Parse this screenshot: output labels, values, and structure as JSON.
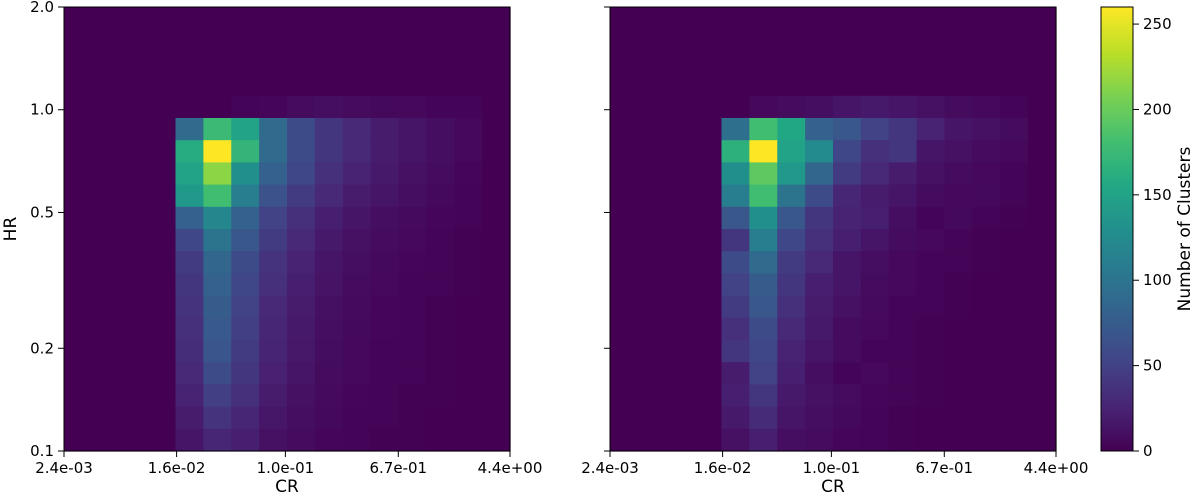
{
  "chart_data": [
    {
      "type": "heatmap",
      "panel": "left",
      "xlabel": "CR",
      "ylabel": "HR",
      "x_scale": "log",
      "y_scale": "log",
      "xlim": [
        0.0024,
        4.4
      ],
      "ylim": [
        0.1,
        2.0
      ],
      "xticks": [
        0.0024,
        0.016,
        0.1,
        0.67,
        4.4
      ],
      "xtick_labels": [
        "2.4e-03",
        "1.6e-02",
        "1.0e-01",
        "6.7e-01",
        "4.4e+00"
      ],
      "yticks": [
        0.1,
        0.2,
        0.5,
        1.0,
        2.0
      ],
      "ytick_labels": [
        "0.1",
        "0.2",
        "0.5",
        "1.0",
        "2.0"
      ],
      "grid": false,
      "bins_x": 16,
      "bins_y": 20,
      "row_order": "top-to-bottom (HR 2.0 at top, HR 0.1 at bottom)",
      "values": [
        [
          0,
          0,
          0,
          0,
          0,
          0,
          0,
          0,
          0,
          0,
          0,
          0,
          0,
          0,
          0,
          0
        ],
        [
          0,
          0,
          0,
          0,
          0,
          0,
          0,
          0,
          0,
          0,
          0,
          0,
          0,
          0,
          0,
          0
        ],
        [
          0,
          0,
          0,
          0,
          0,
          0,
          0,
          0,
          0,
          0,
          0,
          0,
          0,
          0,
          0,
          0
        ],
        [
          0,
          0,
          0,
          0,
          0,
          0,
          0,
          0,
          0,
          0,
          0,
          0,
          0,
          0,
          0,
          0
        ],
        [
          0,
          0,
          0,
          0,
          0,
          0,
          2,
          4,
          8,
          10,
          8,
          6,
          5,
          3,
          2,
          0
        ],
        [
          0,
          0,
          0,
          0,
          90,
          175,
          150,
          90,
          60,
          40,
          30,
          20,
          15,
          10,
          5,
          0
        ],
        [
          0,
          0,
          0,
          0,
          160,
          260,
          170,
          90,
          60,
          40,
          30,
          20,
          15,
          10,
          5,
          0
        ],
        [
          0,
          0,
          0,
          0,
          150,
          215,
          130,
          80,
          55,
          35,
          25,
          18,
          12,
          8,
          4,
          0
        ],
        [
          0,
          0,
          0,
          0,
          140,
          180,
          110,
          65,
          45,
          30,
          20,
          15,
          10,
          6,
          3,
          0
        ],
        [
          0,
          0,
          0,
          0,
          80,
          120,
          80,
          50,
          35,
          22,
          15,
          10,
          7,
          4,
          2,
          0
        ],
        [
          0,
          0,
          0,
          0,
          55,
          100,
          70,
          45,
          30,
          18,
          12,
          8,
          5,
          3,
          1,
          0
        ],
        [
          0,
          0,
          0,
          0,
          45,
          85,
          60,
          38,
          25,
          15,
          10,
          6,
          4,
          2,
          1,
          0
        ],
        [
          0,
          0,
          0,
          0,
          40,
          80,
          55,
          35,
          22,
          13,
          8,
          5,
          3,
          2,
          1,
          0
        ],
        [
          0,
          0,
          0,
          0,
          38,
          75,
          50,
          30,
          20,
          11,
          7,
          4,
          3,
          1,
          0,
          0
        ],
        [
          0,
          0,
          0,
          0,
          35,
          72,
          48,
          28,
          18,
          10,
          6,
          4,
          2,
          1,
          0,
          0
        ],
        [
          0,
          0,
          0,
          0,
          33,
          68,
          45,
          26,
          17,
          9,
          5,
          3,
          2,
          1,
          0,
          0
        ],
        [
          0,
          0,
          0,
          0,
          30,
          60,
          40,
          24,
          15,
          8,
          5,
          3,
          2,
          1,
          0,
          0
        ],
        [
          0,
          0,
          0,
          0,
          25,
          48,
          35,
          20,
          12,
          7,
          4,
          2,
          1,
          1,
          0,
          0
        ],
        [
          0,
          0,
          0,
          0,
          20,
          38,
          28,
          16,
          10,
          6,
          3,
          2,
          1,
          0,
          0,
          0
        ],
        [
          0,
          0,
          0,
          0,
          15,
          28,
          22,
          12,
          8,
          4,
          2,
          1,
          1,
          0,
          0,
          0
        ]
      ]
    },
    {
      "type": "heatmap",
      "panel": "right",
      "xlabel": "CR",
      "ylabel": "",
      "x_scale": "log",
      "y_scale": "log",
      "xlim": [
        0.0024,
        4.4
      ],
      "ylim": [
        0.1,
        2.0
      ],
      "xticks": [
        0.0024,
        0.016,
        0.1,
        0.67,
        4.4
      ],
      "xtick_labels": [
        "2.4e-03",
        "1.6e-02",
        "1.0e-01",
        "6.7e-01",
        "4.4e+00"
      ],
      "yticks": [
        0.1,
        0.2,
        0.5,
        1.0,
        2.0
      ],
      "ytick_labels": [
        "",
        "",
        "",
        "",
        ""
      ],
      "grid": false,
      "bins_x": 16,
      "bins_y": 20,
      "row_order": "top-to-bottom (HR 2.0 at top, HR 0.1 at bottom)",
      "values": [
        [
          0,
          0,
          0,
          0,
          0,
          0,
          0,
          0,
          0,
          0,
          0,
          0,
          0,
          0,
          0,
          0
        ],
        [
          0,
          0,
          0,
          0,
          0,
          0,
          0,
          0,
          0,
          0,
          0,
          0,
          0,
          0,
          0,
          0
        ],
        [
          0,
          0,
          0,
          0,
          0,
          0,
          0,
          0,
          0,
          0,
          0,
          0,
          0,
          0,
          0,
          0
        ],
        [
          0,
          0,
          0,
          0,
          0,
          0,
          0,
          0,
          0,
          0,
          0,
          0,
          0,
          0,
          0,
          0
        ],
        [
          0,
          0,
          0,
          0,
          0,
          5,
          8,
          10,
          15,
          18,
          15,
          12,
          8,
          5,
          2,
          0
        ],
        [
          0,
          0,
          0,
          0,
          95,
          180,
          155,
          80,
          70,
          50,
          40,
          25,
          15,
          12,
          8,
          0
        ],
        [
          0,
          0,
          0,
          0,
          165,
          260,
          150,
          125,
          55,
          35,
          40,
          15,
          12,
          8,
          5,
          0
        ],
        [
          0,
          0,
          0,
          0,
          130,
          195,
          140,
          85,
          45,
          30,
          20,
          12,
          8,
          5,
          3,
          0
        ],
        [
          0,
          0,
          0,
          0,
          110,
          180,
          100,
          60,
          28,
          20,
          15,
          8,
          5,
          6,
          2,
          0
        ],
        [
          0,
          0,
          0,
          0,
          70,
          130,
          70,
          40,
          25,
          22,
          10,
          3,
          6,
          2,
          1,
          0
        ],
        [
          0,
          0,
          0,
          0,
          40,
          110,
          55,
          35,
          22,
          15,
          8,
          5,
          2,
          1,
          0,
          0
        ],
        [
          0,
          0,
          0,
          0,
          60,
          90,
          45,
          30,
          15,
          10,
          5,
          3,
          2,
          1,
          0,
          0
        ],
        [
          0,
          0,
          0,
          0,
          50,
          75,
          40,
          22,
          15,
          8,
          5,
          2,
          1,
          0,
          0,
          0
        ],
        [
          0,
          0,
          0,
          0,
          45,
          70,
          35,
          20,
          12,
          7,
          3,
          2,
          1,
          0,
          0,
          0
        ],
        [
          0,
          0,
          0,
          0,
          35,
          60,
          30,
          18,
          8,
          5,
          2,
          1,
          0,
          0,
          0,
          0
        ],
        [
          0,
          0,
          0,
          0,
          40,
          55,
          25,
          15,
          8,
          3,
          2,
          1,
          0,
          0,
          0,
          0
        ],
        [
          0,
          0,
          0,
          0,
          20,
          50,
          22,
          10,
          3,
          5,
          2,
          1,
          0,
          0,
          0,
          0
        ],
        [
          0,
          0,
          0,
          0,
          22,
          40,
          18,
          12,
          8,
          4,
          2,
          1,
          0,
          0,
          0,
          0
        ],
        [
          0,
          0,
          0,
          0,
          18,
          32,
          15,
          10,
          6,
          3,
          1,
          0,
          0,
          0,
          0,
          0
        ],
        [
          0,
          0,
          0,
          0,
          12,
          22,
          10,
          8,
          4,
          2,
          1,
          0,
          0,
          0,
          0,
          0
        ]
      ]
    }
  ],
  "colorbar": {
    "label": "Number of Clusters",
    "colormap": "viridis",
    "vmin": 0,
    "vmax": 260,
    "ticks": [
      0,
      50,
      100,
      150,
      200,
      250
    ],
    "tick_labels": [
      "0",
      "50",
      "100",
      "150",
      "200",
      "250"
    ]
  }
}
